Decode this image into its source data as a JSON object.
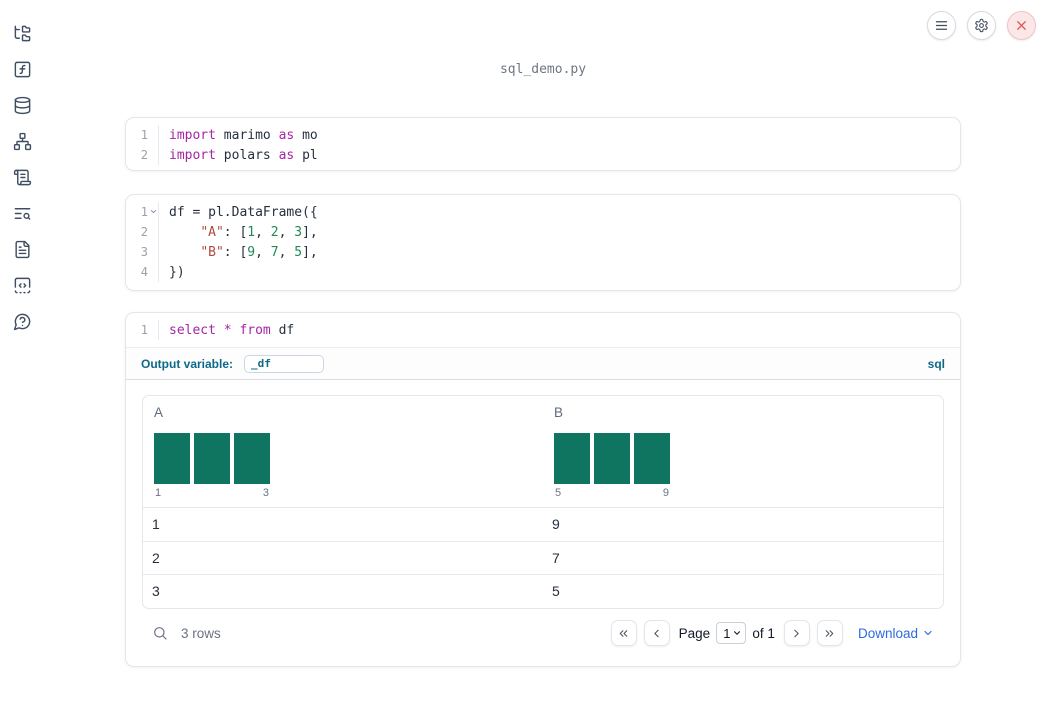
{
  "title": "sql_demo.py",
  "colors": {
    "keyword": "#a626a4",
    "string": "#b04a3e",
    "number": "#1f8a55",
    "accent_blue": "#0d6986",
    "link_blue": "#2d6bdf",
    "histogram_teal": "#0f7460",
    "close_red": "#e05555"
  },
  "sidebar": {
    "icons": [
      "file-tree",
      "function-square",
      "database",
      "dependency-graph",
      "scroll-text",
      "list-search",
      "file-text",
      "snippets",
      "help-circle"
    ]
  },
  "topbar": {
    "icons": [
      "menu",
      "settings-gear",
      "close-x"
    ]
  },
  "cells": [
    {
      "name": "imports-cell",
      "lines": [
        {
          "num": "1",
          "tokens": [
            {
              "s": "kw",
              "t": "import"
            },
            {
              "s": "plain",
              "t": " marimo "
            },
            {
              "s": "kw",
              "t": "as"
            },
            {
              "s": "plain",
              "t": " mo"
            }
          ]
        },
        {
          "num": "2",
          "tokens": [
            {
              "s": "kw",
              "t": "import"
            },
            {
              "s": "plain",
              "t": " polars "
            },
            {
              "s": "kw",
              "t": "as"
            },
            {
              "s": "plain",
              "t": " pl"
            }
          ]
        }
      ]
    },
    {
      "name": "dataframe-cell",
      "lines": [
        {
          "num": "1",
          "fold": true,
          "tokens": [
            {
              "s": "plain",
              "t": "df = pl.DataFrame({"
            }
          ]
        },
        {
          "num": "2",
          "tokens": [
            {
              "s": "plain",
              "t": "    "
            },
            {
              "s": "str",
              "t": "\"A\""
            },
            {
              "s": "plain",
              "t": ": ["
            },
            {
              "s": "num",
              "t": "1"
            },
            {
              "s": "plain",
              "t": ", "
            },
            {
              "s": "num",
              "t": "2"
            },
            {
              "s": "plain",
              "t": ", "
            },
            {
              "s": "num",
              "t": "3"
            },
            {
              "s": "plain",
              "t": "],"
            }
          ]
        },
        {
          "num": "3",
          "tokens": [
            {
              "s": "plain",
              "t": "    "
            },
            {
              "s": "str",
              "t": "\"B\""
            },
            {
              "s": "plain",
              "t": ": ["
            },
            {
              "s": "num",
              "t": "9"
            },
            {
              "s": "plain",
              "t": ", "
            },
            {
              "s": "num",
              "t": "7"
            },
            {
              "s": "plain",
              "t": ", "
            },
            {
              "s": "num",
              "t": "5"
            },
            {
              "s": "plain",
              "t": "],"
            }
          ]
        },
        {
          "num": "4",
          "tokens": [
            {
              "s": "plain",
              "t": "})"
            }
          ]
        }
      ]
    },
    {
      "name": "sql-cell",
      "lines": [
        {
          "num": "1",
          "tokens": [
            {
              "s": "kw",
              "t": "select"
            },
            {
              "s": "plain",
              "t": " "
            },
            {
              "s": "kw",
              "t": "*"
            },
            {
              "s": "plain",
              "t": " "
            },
            {
              "s": "kw",
              "t": "from"
            },
            {
              "s": "plain",
              "t": " df"
            }
          ]
        }
      ],
      "output_variable_label": "Output variable:",
      "output_variable_value": "_df",
      "language_badge": "sql"
    }
  ],
  "table": {
    "columns": [
      {
        "header": "A",
        "min_label": "1",
        "max_label": "3",
        "bars": [
          1,
          1,
          1
        ]
      },
      {
        "header": "B",
        "min_label": "5",
        "max_label": "9",
        "bars": [
          1,
          1,
          1
        ]
      }
    ],
    "rows": [
      [
        "1",
        "9"
      ],
      [
        "2",
        "7"
      ],
      [
        "3",
        "5"
      ]
    ],
    "row_count_label": "3 rows",
    "pagination": {
      "page_label": "Page",
      "page_value": "1",
      "of_label": "of 1"
    },
    "download_label": "Download"
  }
}
